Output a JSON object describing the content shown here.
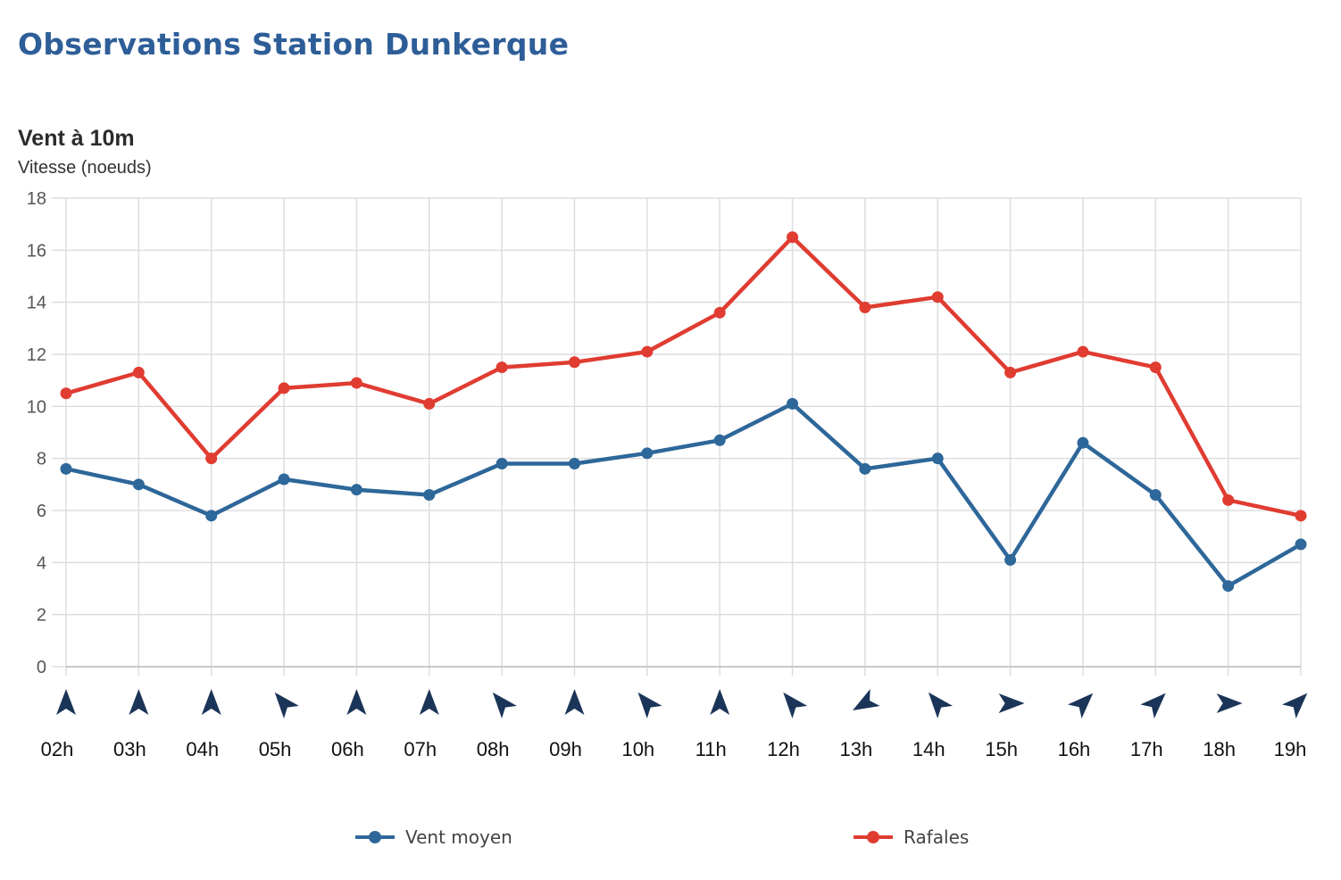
{
  "page": {
    "title": "Observations Station Dunkerque"
  },
  "chart_data": {
    "type": "line",
    "title": "Vent à 10m",
    "ylabel": "Vitesse (noeuds)",
    "xlabel": "",
    "ylim": [
      0,
      18
    ],
    "yticks": [
      0,
      2,
      4,
      6,
      8,
      10,
      12,
      14,
      16,
      18
    ],
    "grid": true,
    "legend_position": "bottom",
    "categories": [
      "02h",
      "03h",
      "04h",
      "05h",
      "06h",
      "07h",
      "08h",
      "09h",
      "10h",
      "11h",
      "12h",
      "13h",
      "14h",
      "15h",
      "16h",
      "17h",
      "18h",
      "19h"
    ],
    "series": [
      {
        "name": "Vent moyen",
        "color": "#2e6799",
        "values": [
          7.6,
          7.0,
          5.8,
          7.2,
          6.8,
          6.6,
          7.8,
          7.8,
          8.2,
          8.7,
          10.1,
          7.6,
          8.0,
          4.1,
          8.6,
          6.6,
          3.1,
          4.7
        ]
      },
      {
        "name": "Rafales",
        "color": "#e03c31",
        "values": [
          10.5,
          11.3,
          8.0,
          10.7,
          10.9,
          10.1,
          11.5,
          11.7,
          12.1,
          13.6,
          16.5,
          13.8,
          14.2,
          11.3,
          12.1,
          11.5,
          6.4,
          5.8
        ]
      }
    ],
    "wind_direction_icon": "wind-arrow-icon",
    "wind_direction_deg": [
      0,
      0,
      0,
      320,
      0,
      0,
      320,
      0,
      320,
      0,
      320,
      240,
      320,
      90,
      45,
      45,
      90,
      45
    ],
    "arrow_color": "#1b3558"
  }
}
